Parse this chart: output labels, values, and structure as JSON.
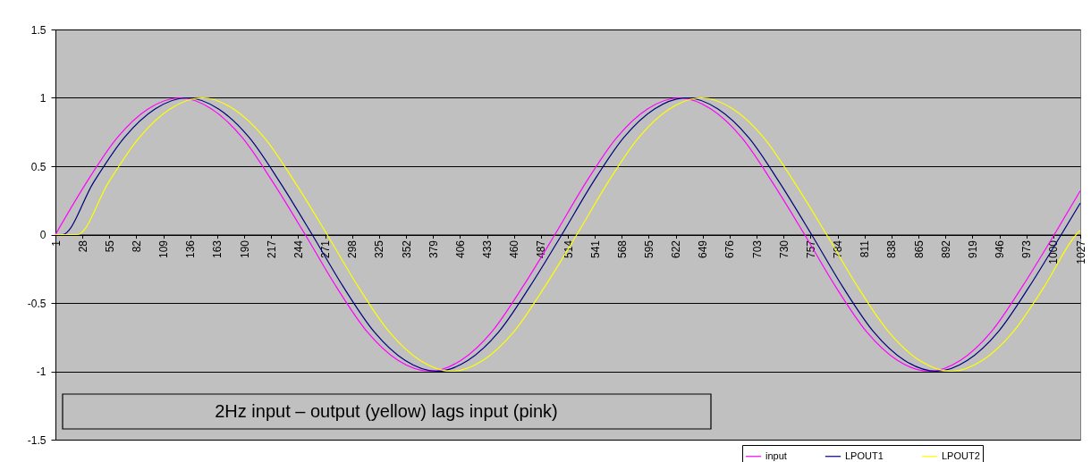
{
  "chart_data": {
    "type": "line",
    "annotations": [
      "2Hz input – output (yellow) lags input (pink)"
    ],
    "xlim": [
      1,
      1027
    ],
    "xticks": [
      1,
      28,
      55,
      82,
      109,
      136,
      163,
      190,
      217,
      244,
      271,
      298,
      325,
      352,
      379,
      406,
      433,
      460,
      487,
      514,
      541,
      568,
      595,
      622,
      649,
      676,
      703,
      730,
      757,
      784,
      811,
      838,
      865,
      892,
      919,
      946,
      973,
      1000,
      1027
    ],
    "ylim": [
      -1.5,
      1.5
    ],
    "yticks": [
      -1.5,
      -1,
      -0.5,
      0,
      0.5,
      1,
      1.5
    ],
    "grid": "y",
    "legend": "bottom right",
    "series": [
      {
        "name": "input",
        "color": "#ff00ff",
        "x": [
          1,
          32,
          63,
          94,
          126,
          157,
          188,
          219,
          251,
          282,
          313,
          344,
          376,
          407,
          438,
          469,
          501,
          532,
          563,
          594,
          626,
          657,
          688,
          719,
          751,
          782,
          813,
          844,
          876,
          907,
          938,
          969,
          1001,
          1027
        ],
        "values": [
          0,
          0.38,
          0.71,
          0.92,
          1,
          0.92,
          0.71,
          0.38,
          0,
          -0.38,
          -0.71,
          -0.92,
          -1,
          -0.92,
          -0.71,
          -0.38,
          0,
          0.38,
          0.71,
          0.92,
          1,
          0.92,
          0.71,
          0.38,
          0,
          -0.38,
          -0.71,
          -0.92,
          -1,
          -0.92,
          -0.71,
          -0.38,
          0,
          0.32
        ]
      },
      {
        "name": "LPOUT1",
        "color": "#000080",
        "x": [
          1,
          8,
          39,
          70,
          101,
          133,
          164,
          195,
          226,
          258,
          289,
          320,
          351,
          383,
          414,
          445,
          476,
          508,
          539,
          570,
          601,
          633,
          664,
          695,
          726,
          758,
          789,
          820,
          851,
          883,
          914,
          945,
          976,
          1008,
          1027
        ],
        "values": [
          0,
          0,
          0.38,
          0.71,
          0.92,
          1,
          0.92,
          0.71,
          0.38,
          0,
          -0.38,
          -0.71,
          -0.92,
          -1,
          -0.92,
          -0.71,
          -0.38,
          0,
          0.38,
          0.71,
          0.92,
          1,
          0.92,
          0.71,
          0.38,
          0,
          -0.38,
          -0.71,
          -0.92,
          -1,
          -0.92,
          -0.71,
          -0.38,
          0,
          0.23
        ]
      },
      {
        "name": "LPOUT2",
        "color": "#ffff00",
        "x": [
          1,
          23,
          54,
          85,
          116,
          148,
          179,
          210,
          241,
          273,
          304,
          335,
          366,
          398,
          429,
          460,
          491,
          523,
          554,
          585,
          616,
          648,
          679,
          710,
          741,
          773,
          804,
          835,
          866,
          898,
          929,
          960,
          991,
          1023,
          1027
        ],
        "values": [
          0,
          0,
          0.38,
          0.71,
          0.92,
          1,
          0.92,
          0.71,
          0.38,
          0,
          -0.38,
          -0.71,
          -0.92,
          -1,
          -0.92,
          -0.71,
          -0.38,
          0,
          0.38,
          0.71,
          0.92,
          1,
          0.92,
          0.71,
          0.38,
          0,
          -0.38,
          -0.71,
          -0.92,
          -1,
          -0.92,
          -0.71,
          -0.38,
          0,
          0.03
        ]
      }
    ]
  }
}
